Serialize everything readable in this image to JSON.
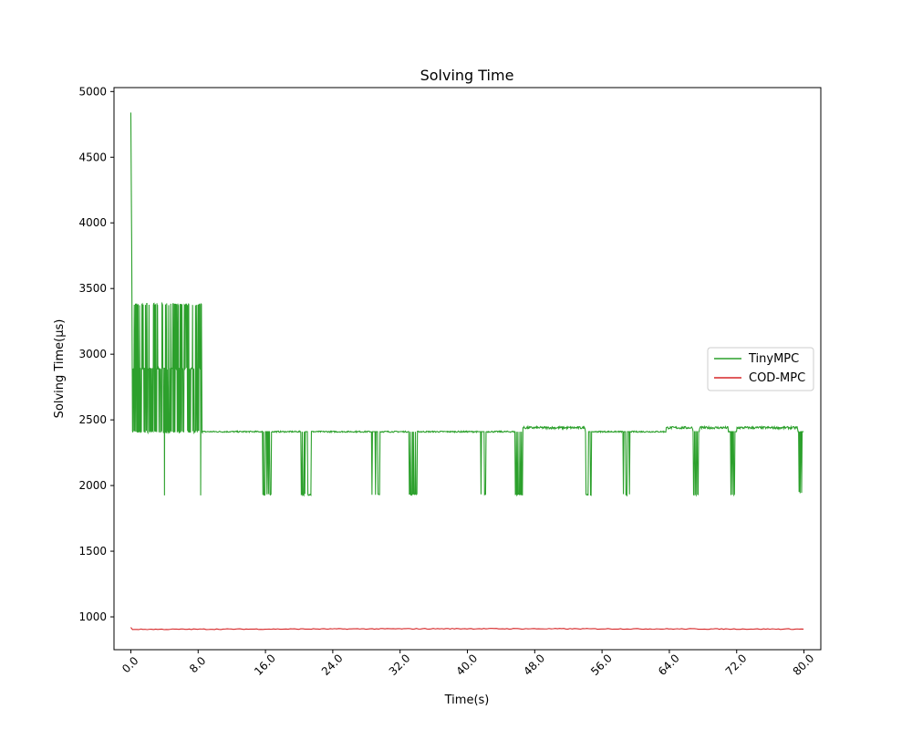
{
  "chart_data": {
    "type": "line",
    "title": "Solving Time",
    "xlabel": "Time(s)",
    "ylabel": "Solving Time(μs)",
    "xlim": [
      -2.0,
      82.0
    ],
    "ylim": [
      750,
      5030
    ],
    "x_ticks": [
      0,
      8,
      16,
      24,
      32,
      40,
      48,
      56,
      64,
      72,
      80
    ],
    "x_tick_labels": [
      "0.0",
      "8.0",
      "16.0",
      "24.0",
      "32.0",
      "40.0",
      "48.0",
      "56.0",
      "64.0",
      "72.0",
      "80.0"
    ],
    "y_ticks": [
      1000,
      1500,
      2000,
      2500,
      3000,
      3500,
      4000,
      4500,
      5000
    ],
    "y_tick_labels": [
      "1000",
      "1500",
      "2000",
      "2500",
      "3000",
      "3500",
      "4000",
      "4500",
      "5000"
    ],
    "grid": false,
    "legend": {
      "placement": "center-right",
      "entries": [
        "TinyMPC",
        "COD-MPC"
      ]
    },
    "series": [
      {
        "name": "TinyMPC",
        "color": "#2ca02c",
        "baseline": 2410,
        "elevated_baseline": 2440,
        "initial_spikes": [
          {
            "x": 0.0,
            "y": 4840
          },
          {
            "x": 0.05,
            "y": 4330
          },
          {
            "x": 0.1,
            "y": 3860
          }
        ],
        "early_oscillation": {
          "x_range": [
            0.2,
            8.5
          ],
          "levels": [
            2410,
            2890,
            3380
          ]
        },
        "early_dips": [
          {
            "x": 4.0,
            "y": 1925
          },
          {
            "x": 8.3,
            "y": 1925
          }
        ],
        "steady_points": [
          {
            "x": 8.5,
            "y": 2410
          },
          {
            "x": 80.0,
            "y": 2410
          }
        ],
        "dip_windows": [
          {
            "x_range": [
              15.7,
              16.7
            ],
            "y": 1925
          },
          {
            "x_range": [
              20.2,
              21.4
            ],
            "y": 1925
          },
          {
            "x_range": [
              28.6,
              29.6
            ],
            "y": 1925
          },
          {
            "x_range": [
              33.0,
              34.0
            ],
            "y": 1925
          },
          {
            "x_range": [
              41.2,
              42.2
            ],
            "y": 1925
          },
          {
            "x_range": [
              45.6,
              46.6
            ],
            "y": 1925
          },
          {
            "x_range": [
              54.1,
              54.9
            ],
            "y": 1925
          },
          {
            "x_range": [
              58.5,
              59.4
            ],
            "y": 1925
          },
          {
            "x_range": [
              66.8,
              67.6
            ],
            "y": 1925
          },
          {
            "x_range": [
              71.2,
              72.0
            ],
            "y": 1925
          },
          {
            "x_range": [
              79.3,
              80.0
            ],
            "y": 1940
          }
        ],
        "elevated_windows": [
          {
            "x_range": [
              46.5,
              54.0
            ]
          },
          {
            "x_range": [
              63.6,
              71.0
            ]
          },
          {
            "x_range": [
              72.0,
              79.3
            ]
          }
        ]
      },
      {
        "name": "COD-MPC",
        "color": "#d62728",
        "values_summary": [
          {
            "x": 0.0,
            "y": 920
          },
          {
            "x": 0.2,
            "y": 905
          },
          {
            "x": 40.0,
            "y": 910
          },
          {
            "x": 80.0,
            "y": 907
          }
        ]
      }
    ]
  }
}
